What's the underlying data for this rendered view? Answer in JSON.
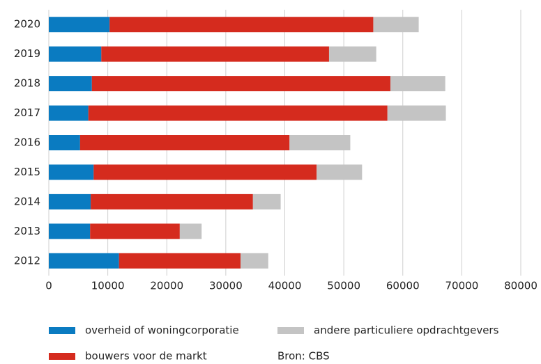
{
  "chart_data": {
    "type": "stacked-barh",
    "categories": [
      "2012",
      "2013",
      "2014",
      "2015",
      "2016",
      "2017",
      "2018",
      "2019",
      "2020"
    ],
    "series": [
      {
        "name": "overheid of woningcorporatie",
        "color": "#0a7bc1",
        "values": [
          11900,
          7000,
          7100,
          7600,
          5300,
          6700,
          7300,
          8900,
          10300
        ]
      },
      {
        "name": "bouwers voor de markt",
        "color": "#d52b1e",
        "values": [
          20600,
          15200,
          27500,
          37800,
          35500,
          50700,
          50600,
          38600,
          44700
        ]
      },
      {
        "name": "andere particuliere opdrachtgevers",
        "color": "#c4c4c4",
        "values": [
          4700,
          3700,
          4700,
          7700,
          10300,
          9900,
          9300,
          8000,
          7700
        ]
      }
    ],
    "xlim": [
      0,
      80000
    ],
    "xticks": [
      0,
      10000,
      20000,
      30000,
      40000,
      50000,
      60000,
      70000,
      80000
    ],
    "grid": true,
    "source": "Bron: CBS"
  }
}
